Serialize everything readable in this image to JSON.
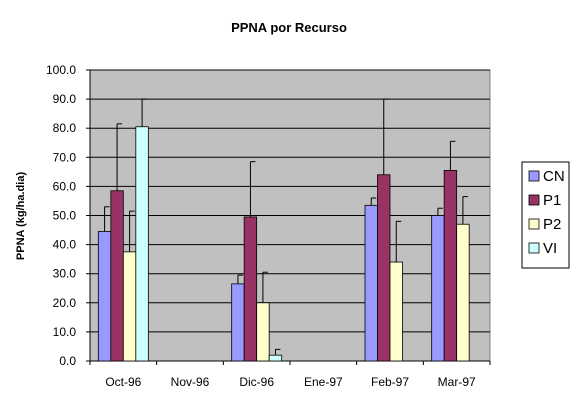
{
  "chart_data": {
    "type": "bar",
    "title": "PPNA por Recurso",
    "xlabel": "",
    "ylabel": "PPNA (kg/ha.dia)",
    "categories": [
      "Oct-96",
      "Nov-96",
      "Dic-96",
      "Ene-97",
      "Feb-97",
      "Mar-97"
    ],
    "ylim": [
      0,
      100
    ],
    "yticks": [
      "0.0",
      "10.0",
      "20.0",
      "30.0",
      "40.0",
      "50.0",
      "60.0",
      "70.0",
      "80.0",
      "90.0",
      "100.0"
    ],
    "grid": true,
    "legend_position": "right",
    "plot_background": "#c0c0c0",
    "series": [
      {
        "name": "CN",
        "color": "#9999ff",
        "values": [
          44.5,
          null,
          26.5,
          null,
          53.5,
          50.0
        ],
        "errors": [
          8.5,
          null,
          3.0,
          null,
          2.5,
          2.5
        ]
      },
      {
        "name": "P1",
        "color": "#993366",
        "values": [
          58.5,
          null,
          49.5,
          null,
          64.0,
          65.5
        ],
        "errors": [
          23.0,
          null,
          19.0,
          null,
          26.0,
          10.0
        ]
      },
      {
        "name": "P2",
        "color": "#ffffcc",
        "values": [
          37.5,
          null,
          20.0,
          null,
          34.0,
          47.0
        ],
        "errors": [
          14.0,
          null,
          10.5,
          null,
          14.0,
          9.5
        ]
      },
      {
        "name": "VI",
        "color": "#ccffff",
        "values": [
          80.5,
          null,
          2.0,
          null,
          null,
          null
        ],
        "errors": [
          9.5,
          null,
          2.0,
          null,
          null,
          null
        ]
      }
    ]
  }
}
